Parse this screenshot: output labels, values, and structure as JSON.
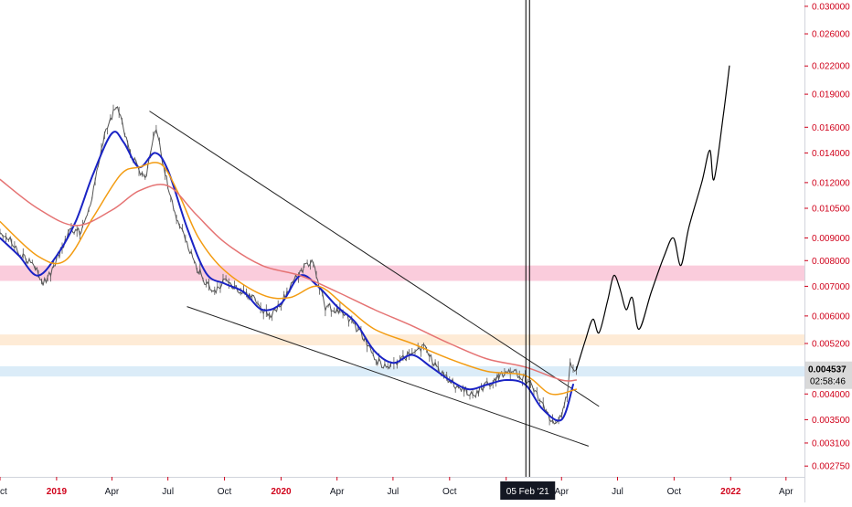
{
  "chart_data": {
    "type": "line",
    "title": "",
    "xlabel": "",
    "ylabel": "",
    "y_scale": "log",
    "ylim": [
      0.0026,
      0.031
    ],
    "xlim": [
      "2018-10-01",
      "2022-05-01"
    ],
    "grid": false,
    "y_ticks": [
      "0.030000",
      "0.026000",
      "0.022000",
      "0.019000",
      "0.016000",
      "0.014000",
      "0.012000",
      "0.010500",
      "0.009000",
      "0.008000",
      "0.007000",
      "0.006000",
      "0.005200",
      "0.004537",
      "0.004000",
      "0.003500",
      "0.003100",
      "0.002750"
    ],
    "x_ticks": [
      {
        "label": "ct",
        "date": "2018-10-01",
        "year": false
      },
      {
        "label": "2019",
        "date": "2019-01-01",
        "year": true
      },
      {
        "label": "Apr",
        "date": "2019-04-01",
        "year": false
      },
      {
        "label": "Jul",
        "date": "2019-07-01",
        "year": false
      },
      {
        "label": "Oct",
        "date": "2019-10-01",
        "year": false
      },
      {
        "label": "2020",
        "date": "2020-01-01",
        "year": true
      },
      {
        "label": "Apr",
        "date": "2020-04-01",
        "year": false
      },
      {
        "label": "Jul",
        "date": "2020-07-01",
        "year": false
      },
      {
        "label": "Oct",
        "date": "2020-10-01",
        "year": false
      },
      {
        "label": "20",
        "date": "2021-01-01",
        "year": true
      },
      {
        "label": "Apr",
        "date": "2021-04-01",
        "year": false
      },
      {
        "label": "Jul",
        "date": "2021-07-01",
        "year": false
      },
      {
        "label": "Oct",
        "date": "2021-10-01",
        "year": false
      },
      {
        "label": "2022",
        "date": "2022-01-01",
        "year": true
      },
      {
        "label": "Apr",
        "date": "2022-04-01",
        "year": false
      }
    ],
    "price_label": {
      "value": "0.004537",
      "timer": "02:58:46"
    },
    "crosshair": {
      "date": "2021-02-05",
      "label": "05 Feb '21"
    },
    "zones": [
      {
        "name": "pink-resistance-zone",
        "from": 0.0072,
        "to": 0.0078,
        "color": "#f8bbd0"
      },
      {
        "name": "orange-resistance-zone",
        "from": 0.00515,
        "to": 0.00545,
        "color": "#fde4c8"
      },
      {
        "name": "blue-support-zone",
        "from": 0.00438,
        "to": 0.00462,
        "color": "#cfe6f5"
      }
    ],
    "trendlines": [
      {
        "name": "upper-trendline",
        "from": [
          "2019-06-01",
          0.0174
        ],
        "to": [
          "2021-06-01",
          0.00375
        ]
      },
      {
        "name": "lower-trendline",
        "from": [
          "2019-08-01",
          0.0063
        ],
        "to": [
          "2021-05-15",
          0.00305
        ]
      }
    ],
    "series": [
      {
        "name": "",
        "color": "#555555",
        "width": 1,
        "style": "price",
        "points": [
          [
            "2018-10-01",
            0.0094
          ],
          [
            "2018-10-20",
            0.0088
          ],
          [
            "2018-11-10",
            0.0081
          ],
          [
            "2018-11-25",
            0.0078
          ],
          [
            "2018-12-10",
            0.0071
          ],
          [
            "2018-12-25",
            0.0076
          ],
          [
            "2019-01-10",
            0.0086
          ],
          [
            "2019-01-25",
            0.0094
          ],
          [
            "2019-02-10",
            0.0093
          ],
          [
            "2019-02-25",
            0.0108
          ],
          [
            "2019-03-10",
            0.0132
          ],
          [
            "2019-03-20",
            0.0152
          ],
          [
            "2019-04-01",
            0.017
          ],
          [
            "2019-04-10",
            0.0178
          ],
          [
            "2019-04-20",
            0.0158
          ],
          [
            "2019-05-01",
            0.014
          ],
          [
            "2019-05-15",
            0.0128
          ],
          [
            "2019-05-25",
            0.0121
          ],
          [
            "2019-06-05",
            0.0148
          ],
          [
            "2019-06-12",
            0.016
          ],
          [
            "2019-06-20",
            0.014
          ],
          [
            "2019-07-01",
            0.0118
          ],
          [
            "2019-07-15",
            0.01
          ],
          [
            "2019-08-01",
            0.0087
          ],
          [
            "2019-08-15",
            0.0078
          ],
          [
            "2019-09-01",
            0.0071
          ],
          [
            "2019-09-15",
            0.0068
          ],
          [
            "2019-10-01",
            0.0072
          ],
          [
            "2019-10-15",
            0.007
          ],
          [
            "2019-11-01",
            0.0068
          ],
          [
            "2019-11-15",
            0.0066
          ],
          [
            "2019-12-01",
            0.0062
          ],
          [
            "2019-12-15",
            0.006
          ],
          [
            "2020-01-01",
            0.0064
          ],
          [
            "2020-01-20",
            0.0072
          ],
          [
            "2020-02-10",
            0.0078
          ],
          [
            "2020-02-20",
            0.008
          ],
          [
            "2020-03-01",
            0.0072
          ],
          [
            "2020-03-13",
            0.0063
          ],
          [
            "2020-04-01",
            0.0062
          ],
          [
            "2020-04-20",
            0.0059
          ],
          [
            "2020-05-10",
            0.0055
          ],
          [
            "2020-06-01",
            0.0048
          ],
          [
            "2020-06-20",
            0.0046
          ],
          [
            "2020-07-10",
            0.0047
          ],
          [
            "2020-08-01",
            0.005
          ],
          [
            "2020-08-20",
            0.0051
          ],
          [
            "2020-09-10",
            0.0046
          ],
          [
            "2020-10-01",
            0.0043
          ],
          [
            "2020-10-20",
            0.0041
          ],
          [
            "2020-11-10",
            0.004
          ],
          [
            "2020-12-01",
            0.0042
          ],
          [
            "2020-12-20",
            0.0044
          ],
          [
            "2021-01-10",
            0.0045
          ],
          [
            "2021-01-25",
            0.0044
          ],
          [
            "2021-02-10",
            0.0042
          ],
          [
            "2021-02-25",
            0.0039
          ],
          [
            "2021-03-10",
            0.0036
          ],
          [
            "2021-03-20",
            0.0034
          ],
          [
            "2021-04-01",
            0.0036
          ],
          [
            "2021-04-10",
            0.004
          ],
          [
            "2021-04-15",
            0.0047
          ],
          [
            "2021-04-20",
            0.0045
          ],
          [
            "2021-04-25",
            0.004537
          ]
        ]
      },
      {
        "name": "",
        "color": "#1a23c4",
        "width": 2,
        "style": "smooth",
        "points": [
          [
            "2018-10-01",
            0.009
          ],
          [
            "2018-11-01",
            0.0082
          ],
          [
            "2018-12-01",
            0.0074
          ],
          [
            "2019-01-01",
            0.0082
          ],
          [
            "2019-02-01",
            0.0098
          ],
          [
            "2019-03-01",
            0.0125
          ],
          [
            "2019-04-01",
            0.0155
          ],
          [
            "2019-04-20",
            0.0148
          ],
          [
            "2019-05-15",
            0.013
          ],
          [
            "2019-06-10",
            0.014
          ],
          [
            "2019-07-01",
            0.0128
          ],
          [
            "2019-08-01",
            0.0095
          ],
          [
            "2019-09-01",
            0.0075
          ],
          [
            "2019-10-01",
            0.0071
          ],
          [
            "2019-11-01",
            0.0068
          ],
          [
            "2019-12-01",
            0.0062
          ],
          [
            "2020-01-01",
            0.0064
          ],
          [
            "2020-02-01",
            0.0074
          ],
          [
            "2020-03-01",
            0.007
          ],
          [
            "2020-04-01",
            0.0063
          ],
          [
            "2020-05-01",
            0.0058
          ],
          [
            "2020-06-01",
            0.005
          ],
          [
            "2020-07-01",
            0.0047
          ],
          [
            "2020-08-01",
            0.0049
          ],
          [
            "2020-09-01",
            0.0046
          ],
          [
            "2020-10-01",
            0.0043
          ],
          [
            "2020-11-01",
            0.0041
          ],
          [
            "2020-12-01",
            0.0042
          ],
          [
            "2021-01-01",
            0.0043
          ],
          [
            "2021-02-01",
            0.0042
          ],
          [
            "2021-03-01",
            0.0037
          ],
          [
            "2021-04-01",
            0.0035
          ],
          [
            "2021-04-20",
            0.0042
          ]
        ]
      },
      {
        "name": "",
        "color": "#f39c12",
        "width": 1.5,
        "style": "smooth",
        "points": [
          [
            "2018-10-01",
            0.0098
          ],
          [
            "2018-12-01",
            0.0082
          ],
          [
            "2019-01-15",
            0.008
          ],
          [
            "2019-03-01",
            0.01
          ],
          [
            "2019-04-15",
            0.0125
          ],
          [
            "2019-05-15",
            0.013
          ],
          [
            "2019-06-20",
            0.0132
          ],
          [
            "2019-07-20",
            0.0112
          ],
          [
            "2019-08-20",
            0.009
          ],
          [
            "2019-10-01",
            0.0076
          ],
          [
            "2019-12-01",
            0.0067
          ],
          [
            "2020-01-15",
            0.0066
          ],
          [
            "2020-03-01",
            0.007
          ],
          [
            "2020-04-15",
            0.0063
          ],
          [
            "2020-06-01",
            0.0056
          ],
          [
            "2020-08-01",
            0.0052
          ],
          [
            "2020-10-01",
            0.0048
          ],
          [
            "2020-12-01",
            0.0045
          ],
          [
            "2021-02-01",
            0.0044
          ],
          [
            "2021-03-15",
            0.004
          ],
          [
            "2021-04-25",
            0.0041
          ]
        ]
      },
      {
        "name": "",
        "color": "#e57373",
        "width": 1.5,
        "style": "smooth",
        "points": [
          [
            "2018-10-01",
            0.0122
          ],
          [
            "2018-12-01",
            0.0105
          ],
          [
            "2019-02-01",
            0.0096
          ],
          [
            "2019-04-01",
            0.0104
          ],
          [
            "2019-05-15",
            0.0115
          ],
          [
            "2019-07-01",
            0.0118
          ],
          [
            "2019-08-15",
            0.0102
          ],
          [
            "2019-10-01",
            0.0088
          ],
          [
            "2019-12-01",
            0.0078
          ],
          [
            "2020-02-01",
            0.0074
          ],
          [
            "2020-04-01",
            0.0068
          ],
          [
            "2020-06-01",
            0.0062
          ],
          [
            "2020-08-01",
            0.0057
          ],
          [
            "2020-10-01",
            0.0052
          ],
          [
            "2020-12-01",
            0.0048
          ],
          [
            "2021-02-01",
            0.0046
          ],
          [
            "2021-04-01",
            0.0043
          ],
          [
            "2021-04-25",
            0.0043
          ]
        ]
      },
      {
        "name": "",
        "color": "#000000",
        "width": 1.2,
        "style": "projection",
        "points": [
          [
            "2021-04-25",
            0.004537
          ],
          [
            "2021-05-10",
            0.0053
          ],
          [
            "2021-05-22",
            0.0059
          ],
          [
            "2021-06-01",
            0.0055
          ],
          [
            "2021-06-15",
            0.0065
          ],
          [
            "2021-06-25",
            0.0074
          ],
          [
            "2021-07-05",
            0.0069
          ],
          [
            "2021-07-15",
            0.0062
          ],
          [
            "2021-07-25",
            0.0066
          ],
          [
            "2021-08-05",
            0.0056
          ],
          [
            "2021-08-25",
            0.0068
          ],
          [
            "2021-09-15",
            0.0082
          ],
          [
            "2021-09-30",
            0.009
          ],
          [
            "2021-10-12",
            0.0078
          ],
          [
            "2021-10-25",
            0.0095
          ],
          [
            "2021-11-15",
            0.012
          ],
          [
            "2021-11-28",
            0.0142
          ],
          [
            "2021-12-05",
            0.0122
          ],
          [
            "2021-12-20",
            0.017
          ],
          [
            "2021-12-30",
            0.022
          ]
        ]
      }
    ]
  }
}
